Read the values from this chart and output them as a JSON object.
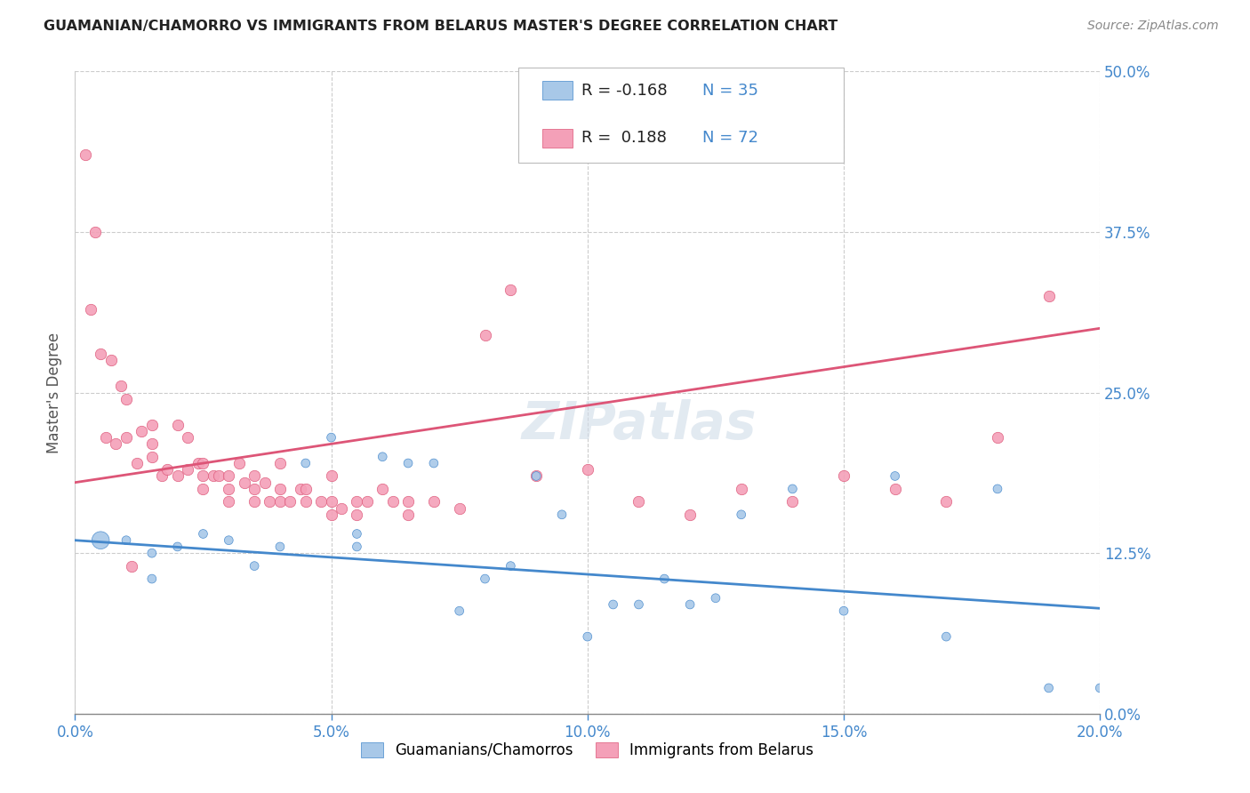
{
  "title": "GUAMANIAN/CHAMORRO VS IMMIGRANTS FROM BELARUS MASTER'S DEGREE CORRELATION CHART",
  "source": "Source: ZipAtlas.com",
  "ylabel": "Master's Degree",
  "xlim": [
    0.0,
    0.2
  ],
  "ylim": [
    0.0,
    0.5
  ],
  "blue_R": "-0.168",
  "blue_N": "35",
  "pink_R": "0.188",
  "pink_N": "72",
  "blue_color": "#a8c8e8",
  "pink_color": "#f4a0b8",
  "blue_line_color": "#4488cc",
  "pink_line_color": "#dd5577",
  "legend1_label": "Guamanians/Chamorros",
  "legend2_label": "Immigrants from Belarus",
  "background_color": "#ffffff",
  "grid_color": "#cccccc",
  "tick_color": "#4488cc",
  "blue_scatter_x": [
    0.005,
    0.01,
    0.015,
    0.015,
    0.02,
    0.025,
    0.03,
    0.035,
    0.04,
    0.045,
    0.05,
    0.055,
    0.055,
    0.06,
    0.065,
    0.07,
    0.075,
    0.08,
    0.085,
    0.09,
    0.095,
    0.1,
    0.105,
    0.11,
    0.115,
    0.12,
    0.125,
    0.13,
    0.14,
    0.15,
    0.16,
    0.17,
    0.18,
    0.19,
    0.2
  ],
  "blue_scatter_y": [
    0.135,
    0.135,
    0.125,
    0.105,
    0.13,
    0.14,
    0.135,
    0.115,
    0.13,
    0.195,
    0.215,
    0.13,
    0.14,
    0.2,
    0.195,
    0.195,
    0.08,
    0.105,
    0.115,
    0.185,
    0.155,
    0.06,
    0.085,
    0.085,
    0.105,
    0.085,
    0.09,
    0.155,
    0.175,
    0.08,
    0.185,
    0.06,
    0.175,
    0.02,
    0.02
  ],
  "blue_scatter_size": [
    200,
    50,
    50,
    50,
    50,
    50,
    50,
    50,
    50,
    50,
    50,
    50,
    50,
    50,
    50,
    50,
    50,
    50,
    50,
    50,
    50,
    50,
    50,
    50,
    50,
    50,
    50,
    50,
    50,
    50,
    50,
    50,
    50,
    50,
    50
  ],
  "pink_scatter_x": [
    0.002,
    0.004,
    0.006,
    0.008,
    0.01,
    0.01,
    0.012,
    0.013,
    0.015,
    0.015,
    0.015,
    0.017,
    0.018,
    0.02,
    0.02,
    0.022,
    0.022,
    0.024,
    0.025,
    0.025,
    0.025,
    0.027,
    0.028,
    0.03,
    0.03,
    0.03,
    0.032,
    0.033,
    0.035,
    0.035,
    0.035,
    0.037,
    0.038,
    0.04,
    0.04,
    0.04,
    0.042,
    0.044,
    0.045,
    0.045,
    0.048,
    0.05,
    0.05,
    0.05,
    0.052,
    0.055,
    0.055,
    0.057,
    0.06,
    0.062,
    0.065,
    0.065,
    0.07,
    0.075,
    0.08,
    0.085,
    0.09,
    0.1,
    0.11,
    0.12,
    0.13,
    0.14,
    0.15,
    0.16,
    0.17,
    0.18,
    0.19,
    0.003,
    0.005,
    0.007,
    0.009,
    0.011
  ],
  "pink_scatter_y": [
    0.435,
    0.375,
    0.215,
    0.21,
    0.245,
    0.215,
    0.195,
    0.22,
    0.225,
    0.21,
    0.2,
    0.185,
    0.19,
    0.225,
    0.185,
    0.215,
    0.19,
    0.195,
    0.195,
    0.185,
    0.175,
    0.185,
    0.185,
    0.185,
    0.175,
    0.165,
    0.195,
    0.18,
    0.175,
    0.185,
    0.165,
    0.18,
    0.165,
    0.195,
    0.175,
    0.165,
    0.165,
    0.175,
    0.175,
    0.165,
    0.165,
    0.185,
    0.165,
    0.155,
    0.16,
    0.165,
    0.155,
    0.165,
    0.175,
    0.165,
    0.165,
    0.155,
    0.165,
    0.16,
    0.295,
    0.33,
    0.185,
    0.19,
    0.165,
    0.155,
    0.175,
    0.165,
    0.185,
    0.175,
    0.165,
    0.215,
    0.325,
    0.315,
    0.28,
    0.275,
    0.255,
    0.115
  ],
  "blue_trend_x": [
    0.0,
    0.2
  ],
  "blue_trend_y": [
    0.135,
    0.082
  ],
  "pink_trend_x": [
    0.0,
    0.2
  ],
  "pink_trend_y": [
    0.18,
    0.3
  ]
}
